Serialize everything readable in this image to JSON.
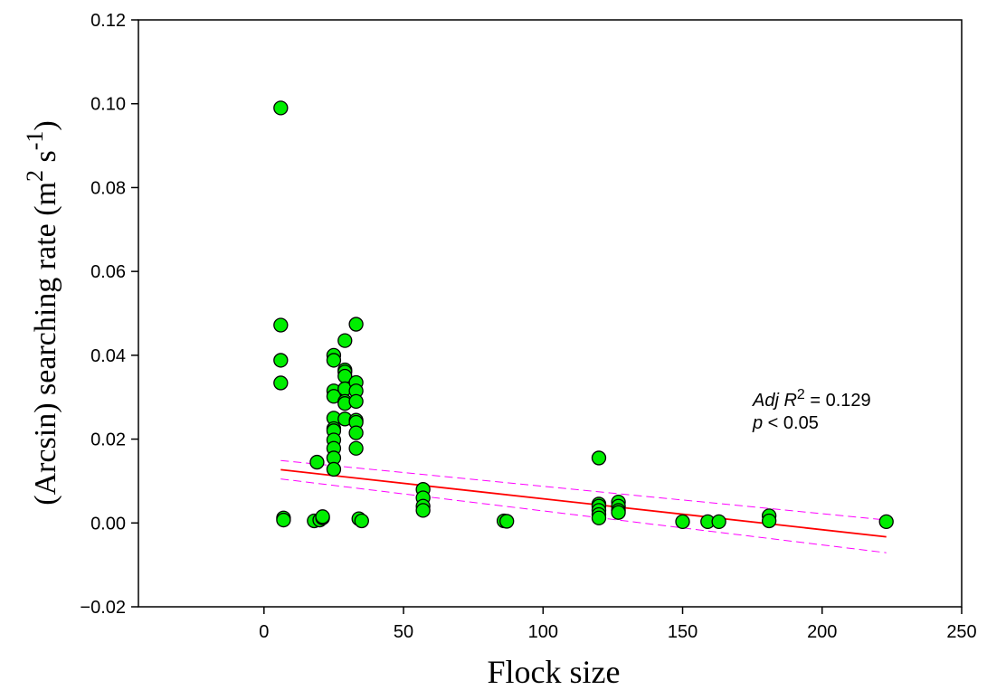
{
  "chart_data": {
    "type": "scatter",
    "xlabel": "Flock size",
    "ylabel": {
      "prefix": "(Arcsin) searching rate (m",
      "sup1": "2",
      "middle": " s",
      "sup2": "-1",
      "suffix": ")"
    },
    "xlim": [
      -45,
      250
    ],
    "ylim": [
      -0.02,
      0.12
    ],
    "xticks": [
      0,
      50,
      100,
      150,
      200,
      250
    ],
    "yticks": [
      -0.02,
      0.0,
      0.02,
      0.04,
      0.06,
      0.08,
      0.1,
      0.12
    ],
    "xtick_labels": [
      "0",
      "50",
      "100",
      "150",
      "200",
      "250"
    ],
    "ytick_labels": [
      "−0.02",
      "0.00",
      "0.02",
      "0.04",
      "0.06",
      "0.08",
      "0.10",
      "0.12"
    ],
    "grid": false,
    "series": [
      {
        "marker_color": "#00ee00",
        "marker_edge": "#000000",
        "points": [
          [
            6,
            0.099
          ],
          [
            6,
            0.0472
          ],
          [
            6,
            0.0388
          ],
          [
            6,
            0.0334
          ],
          [
            7,
            0.0012
          ],
          [
            7,
            0.0007
          ],
          [
            18,
            0.0005
          ],
          [
            19,
            0.0145
          ],
          [
            20,
            0.0007
          ],
          [
            21,
            0.0012
          ],
          [
            21,
            0.0015
          ],
          [
            25,
            0.04
          ],
          [
            25,
            0.0388
          ],
          [
            25,
            0.0315
          ],
          [
            25,
            0.0302
          ],
          [
            25,
            0.025
          ],
          [
            25,
            0.0225
          ],
          [
            25,
            0.022
          ],
          [
            25,
            0.0198
          ],
          [
            25,
            0.0178
          ],
          [
            25,
            0.0155
          ],
          [
            25,
            0.0128
          ],
          [
            29,
            0.0435
          ],
          [
            29,
            0.0365
          ],
          [
            29,
            0.036
          ],
          [
            29,
            0.035
          ],
          [
            29,
            0.032
          ],
          [
            29,
            0.029
          ],
          [
            29,
            0.0285
          ],
          [
            29,
            0.0248
          ],
          [
            33,
            0.0474
          ],
          [
            33,
            0.0335
          ],
          [
            33,
            0.0315
          ],
          [
            33,
            0.029
          ],
          [
            33,
            0.0245
          ],
          [
            33,
            0.024
          ],
          [
            33,
            0.0215
          ],
          [
            33,
            0.0178
          ],
          [
            34,
            0.001
          ],
          [
            35,
            0.0005
          ],
          [
            57,
            0.008
          ],
          [
            57,
            0.006
          ],
          [
            57,
            0.004
          ],
          [
            57,
            0.003
          ],
          [
            86,
            0.0005
          ],
          [
            87,
            0.0004
          ],
          [
            120,
            0.0155
          ],
          [
            120,
            0.0045
          ],
          [
            120,
            0.004
          ],
          [
            120,
            0.003
          ],
          [
            120,
            0.002
          ],
          [
            120,
            0.0012
          ],
          [
            127,
            0.005
          ],
          [
            127,
            0.004
          ],
          [
            127,
            0.003
          ],
          [
            127,
            0.0025
          ],
          [
            150,
            0.0003
          ],
          [
            159,
            0.0003
          ],
          [
            163,
            0.0003
          ],
          [
            181,
            0.0017
          ],
          [
            181,
            0.0005
          ],
          [
            223,
            0.0003
          ]
        ]
      }
    ],
    "regression": {
      "color": "#ff0000",
      "x": [
        6,
        223
      ],
      "y": [
        0.0127,
        -0.0033
      ]
    },
    "confidence_band": {
      "color": "#ff00ff",
      "upper": {
        "x": [
          6,
          223
        ],
        "y": [
          0.0149,
          0.0007
        ]
      },
      "lower": {
        "x": [
          6,
          223
        ],
        "y": [
          0.0105,
          -0.0071
        ]
      }
    },
    "annotation": {
      "line1_italic": "Adj R",
      "line1_sup": "2",
      "line1_rest": " = 0.129",
      "line2_italic": "p",
      "line2_rest": " < 0.05"
    }
  }
}
